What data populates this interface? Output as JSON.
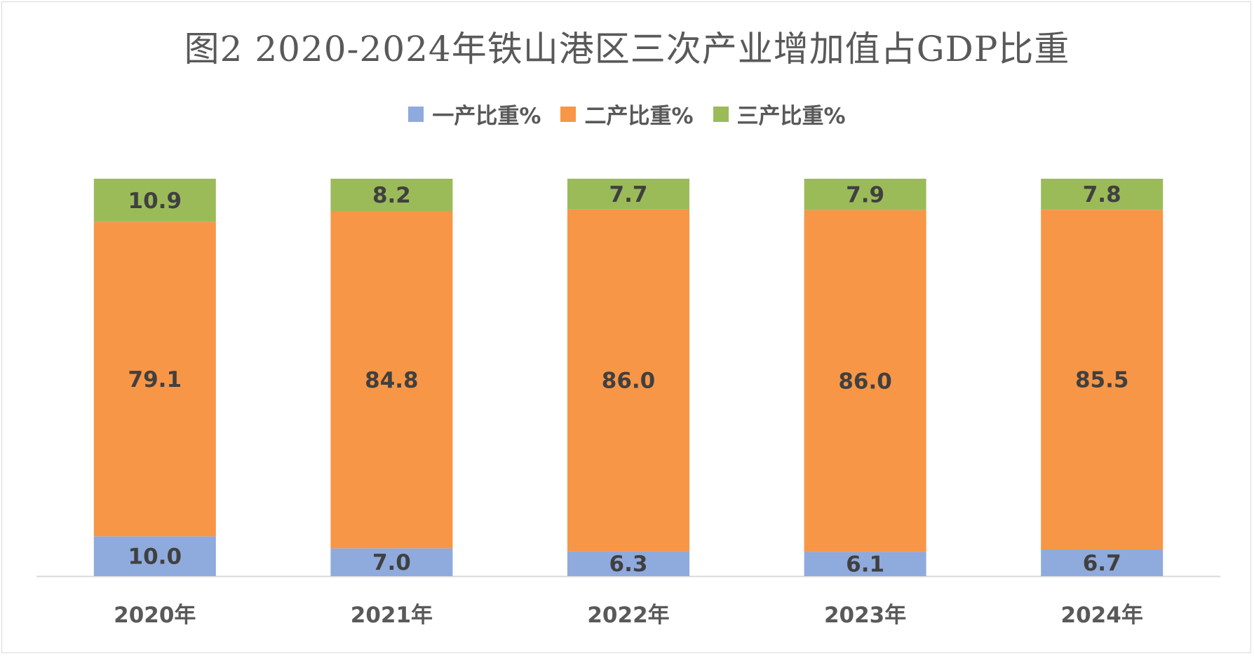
{
  "chart_data": {
    "type": "bar",
    "stacked": true,
    "title": "图2 2020-2024年铁山港区三次产业增加值占GDP比重",
    "categories": [
      "2020年",
      "2021年",
      "2022年",
      "2023年",
      "2024年"
    ],
    "series": [
      {
        "name": "一产比重%",
        "color": "#8faadc",
        "values": [
          10.0,
          7.0,
          6.3,
          6.1,
          6.7
        ]
      },
      {
        "name": "二产比重%",
        "color": "#f79646",
        "values": [
          79.1,
          84.8,
          86.0,
          86.0,
          85.5
        ]
      },
      {
        "name": "三产比重%",
        "color": "#9bbb59",
        "values": [
          10.9,
          8.2,
          7.7,
          7.9,
          7.8
        ]
      }
    ],
    "ylim": [
      0,
      100
    ],
    "legend_position": "top",
    "grid": false
  }
}
